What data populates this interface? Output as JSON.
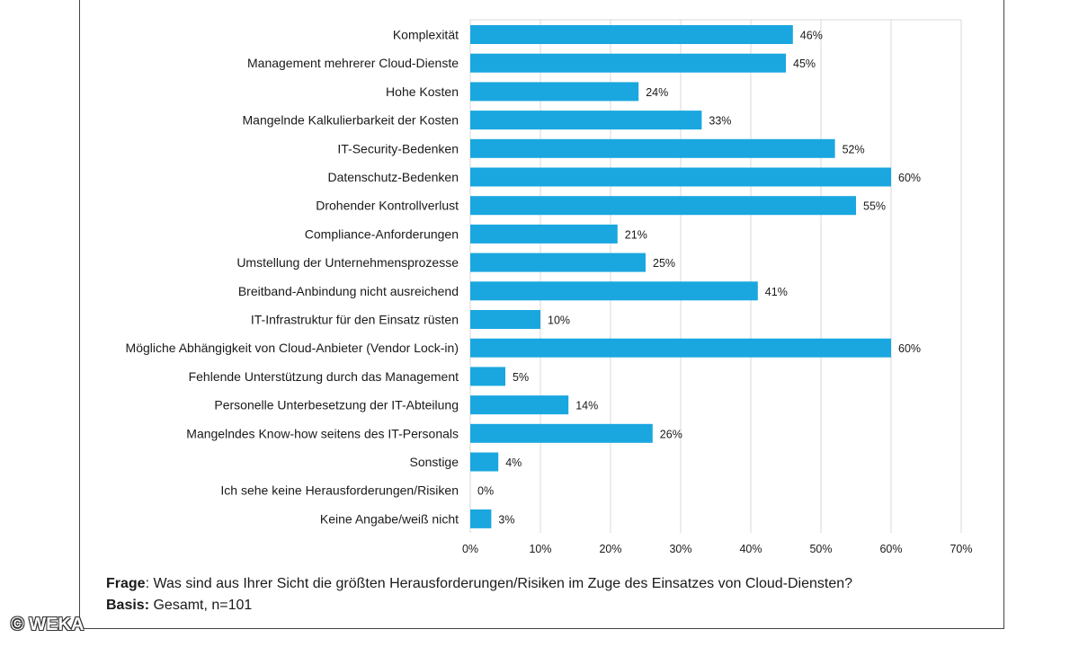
{
  "chart_data": {
    "type": "bar",
    "orientation": "horizontal",
    "categories": [
      "Komplexität",
      "Management mehrerer Cloud-Dienste",
      "Hohe Kosten",
      "Mangelnde Kalkulierbarkeit der Kosten",
      "IT-Security-Bedenken",
      "Datenschutz-Bedenken",
      "Drohender Kontrollverlust",
      "Compliance-Anforderungen",
      "Umstellung der Unternehmensprozesse",
      "Breitband-Anbindung nicht ausreichend",
      "IT-Infrastruktur für den Einsatz rüsten",
      "Mögliche Abhängigkeit von Cloud-Anbieter (Vendor Lock-in)",
      "Fehlende Unterstützung durch das Management",
      "Personelle Unterbesetzung der IT-Abteilung",
      "Mangelndes Know-how seitens des IT-Personals",
      "Sonstige",
      "Ich sehe keine Herausforderungen/Risiken",
      "Keine Angabe/weiß nicht"
    ],
    "values": [
      46,
      45,
      24,
      33,
      52,
      60,
      55,
      21,
      25,
      41,
      10,
      60,
      5,
      14,
      26,
      4,
      0,
      3
    ],
    "value_labels": [
      "46%",
      "45%",
      "24%",
      "33%",
      "52%",
      "60%",
      "55%",
      "21%",
      "25%",
      "41%",
      "10%",
      "60%",
      "5%",
      "14%",
      "26%",
      "4%",
      "0%",
      "3%"
    ],
    "xlim": [
      0,
      70
    ],
    "ticks": [
      0,
      10,
      20,
      30,
      40,
      50,
      60,
      70
    ],
    "tick_labels": [
      "0%",
      "10%",
      "20%",
      "30%",
      "40%",
      "50%",
      "60%",
      "70%"
    ],
    "grid": "vertical",
    "bar_color": "#1aa7e0",
    "grid_color": "#d9d9d9"
  },
  "footnote": {
    "question_label": "Frage",
    "question_text": ": Was sind aus Ihrer Sicht die größten Herausforderungen/Risiken im Zuge des Einsatzes von Cloud-Diensten?",
    "basis_label": "Basis:",
    "basis_text": " Gesamt, n=101"
  },
  "watermark": "© WEKA"
}
